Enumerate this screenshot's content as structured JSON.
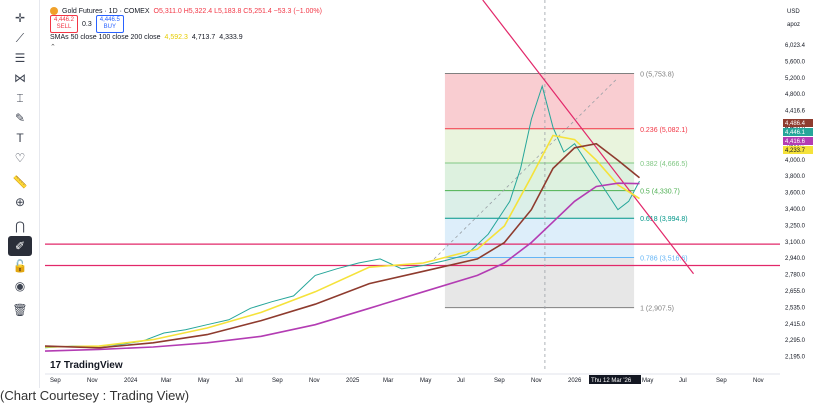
{
  "legend": {
    "title": "Gold Futures · 1D · COMEX",
    "ohlc": "O5,311.0 H5,322.4 L5,183.8 C5,251.4 −53.3 (−1.00%)",
    "sell_price": "4,446.2",
    "sell_label": "SELL",
    "spread": "0.3",
    "buy_price": "4,446.5",
    "buy_label": "BUY",
    "sma_label": "SMAs 50 close 100 close 200 close",
    "sma_values": [
      "4,592.3",
      "4,713.7",
      "4,333.9"
    ]
  },
  "header": {
    "currency": "USD",
    "sub": "apoz"
  },
  "caption": "(Chart Courtesey : Trading View)",
  "brand": "TradingView",
  "chart_data": {
    "type": "line",
    "title": "Gold Futures · 1D · COMEX",
    "x_ticks": [
      "Sep",
      "Nov",
      "2024",
      "Mar",
      "May",
      "Jul",
      "Sep",
      "Nov",
      "2025",
      "Mar",
      "May",
      "Jul",
      "Sep",
      "Nov",
      "2026",
      "Thu 12 Mar '26",
      "May",
      "Jul",
      "Sep",
      "Nov"
    ],
    "y_ticks": [
      "6,023.4",
      "5,600.0",
      "5,200.0",
      "4,800.0",
      "4,416.6",
      "4,400.0",
      "4,233.7",
      "4,000.0",
      "3,800.0",
      "3,600.0",
      "3,400.0",
      "3,250.0",
      "3,100.0",
      "2,940.0",
      "2,780.0",
      "2,655.0",
      "2,535.0",
      "2,415.0",
      "2,295.0",
      "2,195.0"
    ],
    "price_labels": [
      {
        "value": "4,486.4",
        "color": "#8e3b2e"
      },
      {
        "value": "4,446.1",
        "color": "#26a69a"
      },
      {
        "value": "4,416.6",
        "color": "#b33cb3"
      },
      {
        "value": "4,233.7",
        "color": "#f5e23a"
      }
    ],
    "fib_levels": [
      {
        "ratio": "0",
        "value": "5,753.8"
      },
      {
        "ratio": "0.236",
        "value": "5,082.1"
      },
      {
        "ratio": "0.382",
        "value": "4,666.5"
      },
      {
        "ratio": "0.5",
        "value": "4,330.7"
      },
      {
        "ratio": "0.618",
        "value": "3,994.8"
      },
      {
        "ratio": "0.786",
        "value": "3,516.6"
      },
      {
        "ratio": "1",
        "value": "2,907.5"
      }
    ],
    "horizontal_levels": [
      3680,
      3420
    ],
    "series": [
      {
        "name": "Gold Futures",
        "color": "#26a69a",
        "x": [
          0,
          5,
          10,
          14,
          18,
          22,
          26,
          30,
          34,
          38,
          42,
          46,
          50,
          54,
          58,
          62,
          66,
          70,
          74,
          78,
          82,
          86,
          88,
          90,
          92,
          94,
          96,
          98,
          100,
          102,
          104,
          106,
          108,
          110
        ],
        "values": [
          2420,
          2440,
          2440,
          2460,
          2500,
          2600,
          2640,
          2700,
          2760,
          2900,
          2980,
          3050,
          3300,
          3380,
          3450,
          3500,
          3380,
          3420,
          3480,
          3550,
          3800,
          4200,
          4600,
          5200,
          5600,
          5100,
          4800,
          4900,
          4700,
          4500,
          4300,
          4100,
          4200,
          4446
        ]
      },
      {
        "name": "SMA 50",
        "color": "#f5e23a",
        "x": [
          0,
          10,
          20,
          30,
          40,
          50,
          60,
          70,
          80,
          85,
          90,
          94,
          98,
          102,
          106,
          110
        ],
        "values": [
          2430,
          2440,
          2520,
          2660,
          2850,
          3100,
          3400,
          3450,
          3620,
          3900,
          4500,
          5000,
          4950,
          4700,
          4400,
          4233
        ]
      },
      {
        "name": "SMA 100",
        "color": "#8e3b2e",
        "x": [
          0,
          10,
          20,
          30,
          40,
          50,
          60,
          70,
          80,
          85,
          90,
          94,
          98,
          102,
          106,
          110
        ],
        "values": [
          2440,
          2420,
          2480,
          2580,
          2750,
          2950,
          3200,
          3350,
          3500,
          3700,
          4100,
          4600,
          4850,
          4900,
          4700,
          4486
        ]
      },
      {
        "name": "SMA 200",
        "color": "#b33cb3",
        "x": [
          0,
          10,
          20,
          30,
          40,
          50,
          60,
          70,
          80,
          85,
          90,
          94,
          98,
          102,
          106,
          110
        ],
        "values": [
          2380,
          2400,
          2430,
          2480,
          2560,
          2700,
          2900,
          3100,
          3300,
          3450,
          3700,
          3950,
          4200,
          4380,
          4420,
          4416
        ]
      }
    ],
    "crosshair_x_label": "Thu 12 Mar '26"
  }
}
